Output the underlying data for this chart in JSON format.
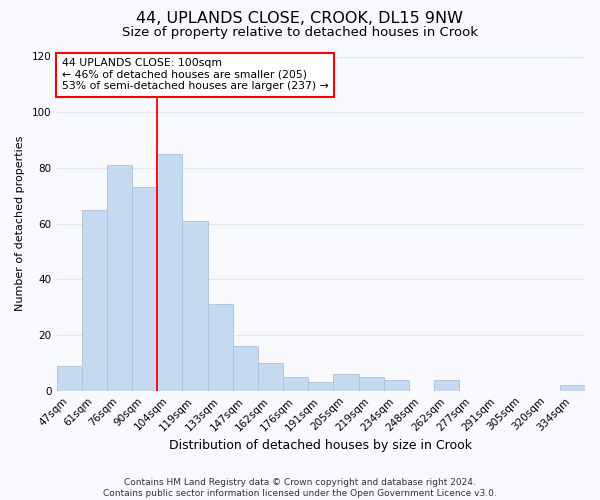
{
  "title": "44, UPLANDS CLOSE, CROOK, DL15 9NW",
  "subtitle": "Size of property relative to detached houses in Crook",
  "xlabel": "Distribution of detached houses by size in Crook",
  "ylabel": "Number of detached properties",
  "bar_labels": [
    "47sqm",
    "61sqm",
    "76sqm",
    "90sqm",
    "104sqm",
    "119sqm",
    "133sqm",
    "147sqm",
    "162sqm",
    "176sqm",
    "191sqm",
    "205sqm",
    "219sqm",
    "234sqm",
    "248sqm",
    "262sqm",
    "277sqm",
    "291sqm",
    "305sqm",
    "320sqm",
    "334sqm"
  ],
  "bar_values": [
    9,
    65,
    81,
    73,
    85,
    61,
    31,
    16,
    10,
    5,
    3,
    6,
    5,
    4,
    0,
    4,
    0,
    0,
    0,
    0,
    2
  ],
  "bar_color": "#c5d9f0",
  "bar_edge_color": "#a8c4e0",
  "vline_color": "red",
  "vline_index": 3.5,
  "annotation_title": "44 UPLANDS CLOSE: 100sqm",
  "annotation_line1": "← 46% of detached houses are smaller (205)",
  "annotation_line2": "53% of semi-detached houses are larger (237) →",
  "annotation_box_color": "white",
  "annotation_box_edge": "red",
  "ylim": [
    0,
    120
  ],
  "yticks": [
    0,
    20,
    40,
    60,
    80,
    100,
    120
  ],
  "footer1": "Contains HM Land Registry data © Crown copyright and database right 2024.",
  "footer2": "Contains public sector information licensed under the Open Government Licence v3.0.",
  "bg_color": "#f8f9fd",
  "plot_bg_color": "#f8f9fd",
  "grid_color": "#e0e8f0",
  "title_fontsize": 11.5,
  "subtitle_fontsize": 9.5,
  "xlabel_fontsize": 9,
  "ylabel_fontsize": 8,
  "tick_fontsize": 7.5,
  "annot_fontsize": 7.8,
  "footer_fontsize": 6.5
}
